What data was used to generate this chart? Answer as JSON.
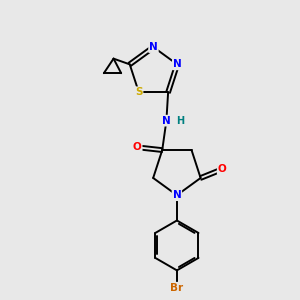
{
  "background_color": "#e8e8e8",
  "atom_colors": {
    "C": "#000000",
    "N": "#0000ff",
    "O": "#ff0000",
    "S": "#ccaa00",
    "Br": "#cc6600",
    "NH": "#008080",
    "bond": "#000000"
  }
}
